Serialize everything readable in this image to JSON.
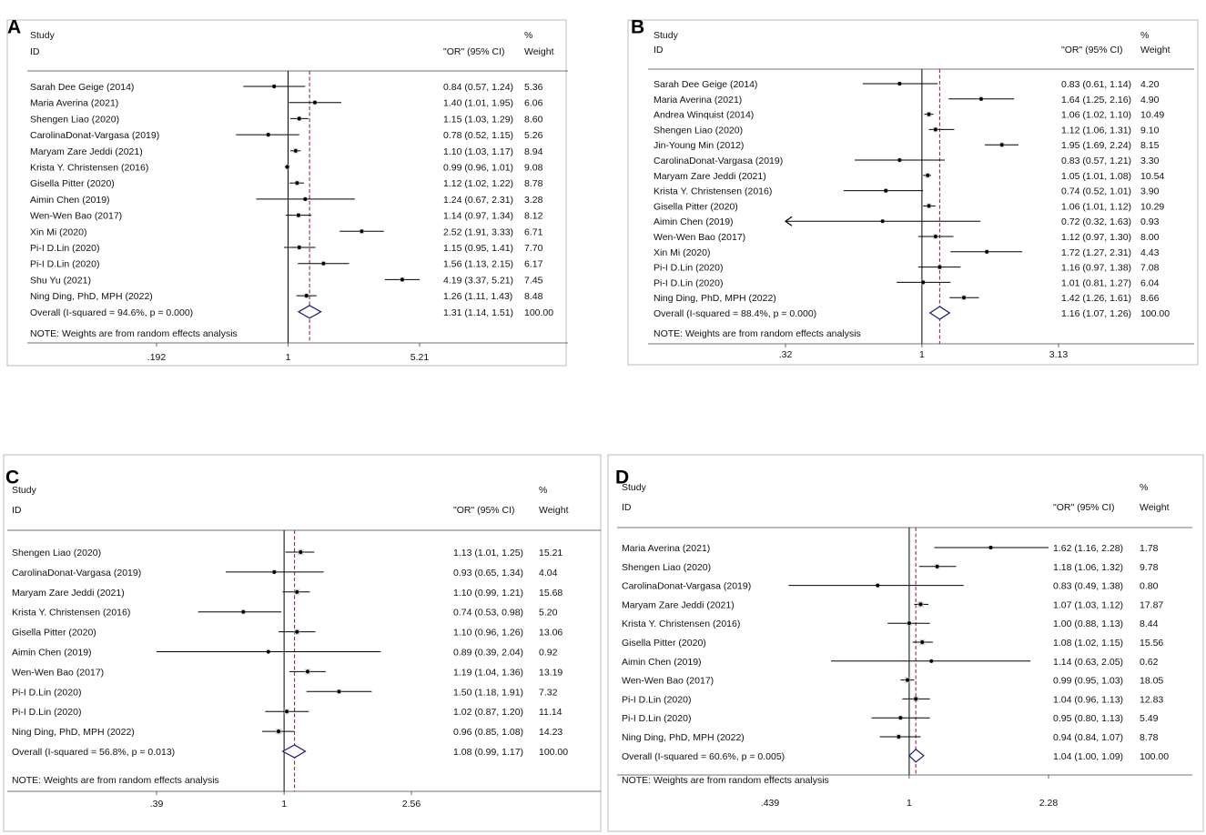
{
  "chart_data": [
    {
      "panel": "A",
      "type": "forest",
      "x_scale": "log",
      "header": {
        "study": "Study",
        "id": "ID",
        "or": "\"OR\" (95% CI)",
        "pct": "%",
        "weight": "Weight"
      },
      "ticks": [
        ".192",
        "1",
        "5.21"
      ],
      "tick_values": [
        0.192,
        1,
        5.21
      ],
      "xlim": [
        0.192,
        5.21
      ],
      "pooled_line": 1.31,
      "note": "NOTE: Weights are from random effects analysis",
      "studies": [
        {
          "name": "Sarah Dee Geige (2014)",
          "or": 0.84,
          "lo": 0.57,
          "hi": 1.24,
          "ci_text": "0.84 (0.57, 1.24)",
          "weight": "5.36"
        },
        {
          "name": "Maria Averina (2021)",
          "or": 1.4,
          "lo": 1.01,
          "hi": 1.95,
          "ci_text": "1.40 (1.01, 1.95)",
          "weight": "6.06"
        },
        {
          "name": "Shengen Liao (2020)",
          "or": 1.15,
          "lo": 1.03,
          "hi": 1.29,
          "ci_text": "1.15 (1.03, 1.29)",
          "weight": "8.60"
        },
        {
          "name": "CarolinaDonat-Vargasa (2019)",
          "or": 0.78,
          "lo": 0.52,
          "hi": 1.15,
          "ci_text": "0.78 (0.52, 1.15)",
          "weight": "5.26"
        },
        {
          "name": "Maryam Zare Jeddi (2021)",
          "or": 1.1,
          "lo": 1.03,
          "hi": 1.17,
          "ci_text": "1.10 (1.03, 1.17)",
          "weight": "8.94"
        },
        {
          "name": "Krista Y. Christensen (2016)",
          "or": 0.99,
          "lo": 0.96,
          "hi": 1.01,
          "ci_text": "0.99 (0.96, 1.01)",
          "weight": "9.08"
        },
        {
          "name": "Gisella Pitter (2020)",
          "or": 1.12,
          "lo": 1.02,
          "hi": 1.22,
          "ci_text": "1.12 (1.02, 1.22)",
          "weight": "8.78"
        },
        {
          "name": "Aimin Chen (2019)",
          "or": 1.24,
          "lo": 0.67,
          "hi": 2.31,
          "ci_text": "1.24 (0.67, 2.31)",
          "weight": "3.28"
        },
        {
          "name": "Wen-Wen Bao (2017)",
          "or": 1.14,
          "lo": 0.97,
          "hi": 1.34,
          "ci_text": "1.14 (0.97, 1.34)",
          "weight": "8.12"
        },
        {
          "name": "Xin Mi (2020)",
          "or": 2.52,
          "lo": 1.91,
          "hi": 3.33,
          "ci_text": "2.52 (1.91, 3.33)",
          "weight": "6.71"
        },
        {
          "name": "Pi-I D.Lin (2020)",
          "or": 1.15,
          "lo": 0.95,
          "hi": 1.41,
          "ci_text": "1.15 (0.95, 1.41)",
          "weight": "7.70"
        },
        {
          "name": "Pi-I D.Lin (2020)",
          "or": 1.56,
          "lo": 1.13,
          "hi": 2.15,
          "ci_text": "1.56 (1.13, 2.15)",
          "weight": "6.17"
        },
        {
          "name": "Shu Yu (2021)",
          "or": 4.19,
          "lo": 3.37,
          "hi": 5.21,
          "ci_text": "4.19 (3.37, 5.21)",
          "weight": "7.45"
        },
        {
          "name": "Ning Ding, PhD, MPH (2022)",
          "or": 1.26,
          "lo": 1.11,
          "hi": 1.43,
          "ci_text": "1.26 (1.11, 1.43)",
          "weight": "8.48"
        }
      ],
      "overall": {
        "label": "Overall  (I-squared = 94.6%, p = 0.000)",
        "or": 1.31,
        "lo": 1.14,
        "hi": 1.51,
        "ci_text": "1.31 (1.14, 1.51)",
        "weight": "100.00"
      }
    },
    {
      "panel": "B",
      "type": "forest",
      "x_scale": "log",
      "header": {
        "study": "Study",
        "id": "ID",
        "or": "\"OR\" (95% CI)",
        "pct": "%",
        "weight": "Weight"
      },
      "ticks": [
        ".32",
        "1",
        "3.13"
      ],
      "tick_values": [
        0.32,
        1,
        3.13
      ],
      "xlim": [
        0.32,
        3.13
      ],
      "pooled_line": 1.16,
      "note": "NOTE: Weights are from random effects analysis",
      "studies": [
        {
          "name": "Sarah Dee Geige (2014)",
          "or": 0.83,
          "lo": 0.61,
          "hi": 1.14,
          "ci_text": "0.83 (0.61, 1.14)",
          "weight": "4.20"
        },
        {
          "name": "Maria Averina (2021)",
          "or": 1.64,
          "lo": 1.25,
          "hi": 2.16,
          "ci_text": "1.64 (1.25, 2.16)",
          "weight": "4.90"
        },
        {
          "name": "Andrea Winquist (2014)",
          "or": 1.06,
          "lo": 1.02,
          "hi": 1.1,
          "ci_text": "1.06 (1.02, 1.10)",
          "weight": "10.49"
        },
        {
          "name": "Shengen Liao (2020)",
          "or": 1.12,
          "lo": 1.06,
          "hi": 1.31,
          "ci_text": "1.12 (1.06, 1.31)",
          "weight": "9.10"
        },
        {
          "name": "Jin-Young Min (2012)",
          "or": 1.95,
          "lo": 1.69,
          "hi": 2.24,
          "ci_text": "1.95 (1.69, 2.24)",
          "weight": "8.15"
        },
        {
          "name": "CarolinaDonat-Vargasa (2019)",
          "or": 0.83,
          "lo": 0.57,
          "hi": 1.21,
          "ci_text": "0.83 (0.57, 1.21)",
          "weight": "3.30"
        },
        {
          "name": "Maryam Zare Jeddi (2021)",
          "or": 1.05,
          "lo": 1.01,
          "hi": 1.08,
          "ci_text": "1.05 (1.01, 1.08)",
          "weight": "10.54"
        },
        {
          "name": "Krista Y. Christensen (2016)",
          "or": 0.74,
          "lo": 0.52,
          "hi": 1.01,
          "ci_text": "0.74 (0.52, 1.01)",
          "weight": "3.90"
        },
        {
          "name": "Gisella Pitter (2020)",
          "or": 1.06,
          "lo": 1.01,
          "hi": 1.12,
          "ci_text": "1.06 (1.01, 1.12)",
          "weight": "10.29"
        },
        {
          "name": "Aimin Chen (2019)",
          "or": 0.72,
          "lo": 0.32,
          "hi": 1.63,
          "ci_text": "0.72 (0.32, 1.63)",
          "weight": "0.93",
          "arrow_left": true
        },
        {
          "name": "Wen-Wen Bao (2017)",
          "or": 1.12,
          "lo": 0.97,
          "hi": 1.3,
          "ci_text": "1.12 (0.97, 1.30)",
          "weight": "8.00"
        },
        {
          "name": "Xin Mi (2020)",
          "or": 1.72,
          "lo": 1.27,
          "hi": 2.31,
          "ci_text": "1.72 (1.27, 2.31)",
          "weight": "4.43"
        },
        {
          "name": "Pi-I D.Lin (2020)",
          "or": 1.16,
          "lo": 0.97,
          "hi": 1.38,
          "ci_text": "1.16 (0.97, 1.38)",
          "weight": "7.08"
        },
        {
          "name": "Pi-I D.Lin (2020)",
          "or": 1.01,
          "lo": 0.81,
          "hi": 1.27,
          "ci_text": "1.01 (0.81, 1.27)",
          "weight": "6.04"
        },
        {
          "name": "Ning Ding, PhD, MPH (2022)",
          "or": 1.42,
          "lo": 1.26,
          "hi": 1.61,
          "ci_text": "1.42 (1.26, 1.61)",
          "weight": "8.66"
        }
      ],
      "overall": {
        "label": "Overall  (I-squared = 88.4%, p = 0.000)",
        "or": 1.16,
        "lo": 1.07,
        "hi": 1.26,
        "ci_text": "1.16 (1.07, 1.26)",
        "weight": "100.00"
      }
    },
    {
      "panel": "C",
      "type": "forest",
      "x_scale": "log",
      "header": {
        "study": "Study",
        "id": "ID",
        "or": "\"OR\" (95% CI)",
        "pct": "%",
        "weight": "Weight"
      },
      "ticks": [
        ".39",
        "1",
        "2.56"
      ],
      "tick_values": [
        0.39,
        1,
        2.56
      ],
      "xlim": [
        0.39,
        2.56
      ],
      "pooled_line": 1.08,
      "note": "NOTE: Weights are from random effects analysis",
      "studies": [
        {
          "name": "Shengen Liao (2020)",
          "or": 1.13,
          "lo": 1.01,
          "hi": 1.25,
          "ci_text": "1.13 (1.01, 1.25)",
          "weight": "15.21"
        },
        {
          "name": "CarolinaDonat-Vargasa (2019)",
          "or": 0.93,
          "lo": 0.65,
          "hi": 1.34,
          "ci_text": "0.93 (0.65, 1.34)",
          "weight": "4.04"
        },
        {
          "name": "Maryam Zare Jeddi (2021)",
          "or": 1.1,
          "lo": 0.99,
          "hi": 1.21,
          "ci_text": "1.10 (0.99, 1.21)",
          "weight": "15.68"
        },
        {
          "name": "Krista Y. Christensen (2016)",
          "or": 0.74,
          "lo": 0.53,
          "hi": 0.98,
          "ci_text": "0.74 (0.53, 0.98)",
          "weight": "5.20"
        },
        {
          "name": "Gisella Pitter (2020)",
          "or": 1.1,
          "lo": 0.96,
          "hi": 1.26,
          "ci_text": "1.10 (0.96, 1.26)",
          "weight": "13.06"
        },
        {
          "name": "Aimin Chen (2019)",
          "or": 0.89,
          "lo": 0.39,
          "hi": 2.04,
          "ci_text": "0.89 (0.39, 2.04)",
          "weight": "0.92"
        },
        {
          "name": "Wen-Wen Bao (2017)",
          "or": 1.19,
          "lo": 1.04,
          "hi": 1.36,
          "ci_text": "1.19 (1.04, 1.36)",
          "weight": "13.19"
        },
        {
          "name": "Pi-I D.Lin (2020)",
          "or": 1.5,
          "lo": 1.18,
          "hi": 1.91,
          "ci_text": "1.50 (1.18, 1.91)",
          "weight": "7.32"
        },
        {
          "name": "Pi-I D.Lin (2020)",
          "or": 1.02,
          "lo": 0.87,
          "hi": 1.2,
          "ci_text": "1.02 (0.87, 1.20)",
          "weight": "11.14"
        },
        {
          "name": "Ning Ding, PhD, MPH (2022)",
          "or": 0.96,
          "lo": 0.85,
          "hi": 1.08,
          "ci_text": "0.96 (0.85, 1.08)",
          "weight": "14.23"
        }
      ],
      "overall": {
        "label": "Overall  (I-squared = 56.8%, p = 0.013)",
        "or": 1.08,
        "lo": 0.99,
        "hi": 1.17,
        "ci_text": "1.08 (0.99, 1.17)",
        "weight": "100.00"
      }
    },
    {
      "panel": "D",
      "type": "forest",
      "x_scale": "log",
      "header": {
        "study": "Study",
        "id": "ID",
        "or": "\"OR\" (95% CI)",
        "pct": "%",
        "weight": "Weight"
      },
      "ticks": [
        ".439",
        "1",
        "2.28"
      ],
      "tick_values": [
        0.439,
        1,
        2.28
      ],
      "xlim": [
        0.439,
        2.28
      ],
      "pooled_line": 1.04,
      "note": "NOTE: Weights are from random effects analysis",
      "studies": [
        {
          "name": "Maria Averina (2021)",
          "or": 1.62,
          "lo": 1.16,
          "hi": 2.28,
          "ci_text": "1.62 (1.16, 2.28)",
          "weight": "1.78"
        },
        {
          "name": "Shengen Liao (2020)",
          "or": 1.18,
          "lo": 1.06,
          "hi": 1.32,
          "ci_text": "1.18 (1.06, 1.32)",
          "weight": "9.78"
        },
        {
          "name": "CarolinaDonat-Vargasa (2019)",
          "or": 0.83,
          "lo": 0.49,
          "hi": 1.38,
          "ci_text": "0.83 (0.49, 1.38)",
          "weight": "0.80"
        },
        {
          "name": "Maryam Zare Jeddi (2021)",
          "or": 1.07,
          "lo": 1.03,
          "hi": 1.12,
          "ci_text": "1.07 (1.03, 1.12)",
          "weight": "17.87"
        },
        {
          "name": "Krista Y. Christensen (2016)",
          "or": 1.0,
          "lo": 0.88,
          "hi": 1.13,
          "ci_text": "1.00 (0.88, 1.13)",
          "weight": "8.44"
        },
        {
          "name": "Gisella Pitter (2020)",
          "or": 1.08,
          "lo": 1.02,
          "hi": 1.15,
          "ci_text": "1.08 (1.02, 1.15)",
          "weight": "15.56"
        },
        {
          "name": "Aimin Chen (2019)",
          "or": 1.14,
          "lo": 0.63,
          "hi": 2.05,
          "ci_text": "1.14 (0.63, 2.05)",
          "weight": "0.62"
        },
        {
          "name": "Wen-Wen Bao (2017)",
          "or": 0.99,
          "lo": 0.95,
          "hi": 1.03,
          "ci_text": "0.99 (0.95, 1.03)",
          "weight": "18.05"
        },
        {
          "name": "Pi-I D.Lin (2020)",
          "or": 1.04,
          "lo": 0.96,
          "hi": 1.13,
          "ci_text": "1.04 (0.96, 1.13)",
          "weight": "12.83"
        },
        {
          "name": "Pi-I D.Lin (2020)",
          "or": 0.95,
          "lo": 0.8,
          "hi": 1.13,
          "ci_text": "0.95 (0.80, 1.13)",
          "weight": "5.49"
        },
        {
          "name": "Ning Ding, PhD, MPH (2022)",
          "or": 0.94,
          "lo": 0.84,
          "hi": 1.07,
          "ci_text": "0.94 (0.84, 1.07)",
          "weight": "8.78"
        }
      ],
      "overall": {
        "label": "Overall  (I-squared = 60.6%, p = 0.005)",
        "or": 1.04,
        "lo": 1.0,
        "hi": 1.09,
        "ci_text": "1.04 (1.00, 1.09)",
        "weight": "100.00"
      }
    }
  ],
  "colors": {
    "pooled_line": "#a3283c",
    "diamond": "#1a1a7a",
    "ink": "#111111",
    "frame": "#999999"
  }
}
